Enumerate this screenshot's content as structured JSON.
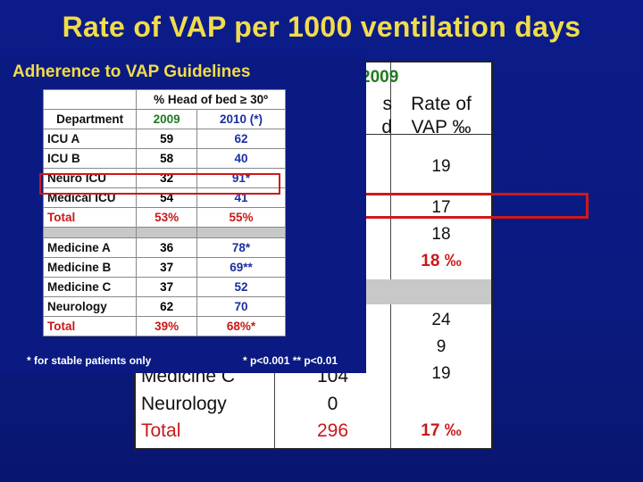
{
  "title": "Rate of VAP per 1000 ventilation days",
  "background_table": {
    "year": "2009",
    "col_header_1": "s\nd",
    "col_header_2": "Rate of\nVAP ‰",
    "rates": [
      "19",
      "17",
      "18",
      "18 ‰",
      "24",
      "9",
      "19",
      "17 ‰"
    ],
    "rows": [
      {
        "dept": "Medicine C",
        "value": "104"
      },
      {
        "dept": "Neurology",
        "value": "0"
      },
      {
        "dept": "Total",
        "value": "296"
      }
    ]
  },
  "overlay": {
    "title": "Adherence to VAP Guidelines",
    "header": {
      "measure": "% Head of bed ≥ 30º",
      "dept": "Department",
      "y2009": "2009",
      "y2010": "2010 (*)"
    },
    "rows1": [
      {
        "dept": "ICU A",
        "v2009": "59",
        "v2010": "62"
      },
      {
        "dept": "ICU B",
        "v2009": "58",
        "v2010": "40"
      },
      {
        "dept": "Neuro ICU",
        "v2009": "32",
        "v2010": "91*"
      },
      {
        "dept": "Medical ICU",
        "v2009": "54",
        "v2010": "41"
      },
      {
        "dept": "Total",
        "v2009": "53%",
        "v2010": "55%"
      }
    ],
    "rows2": [
      {
        "dept": "Medicine A",
        "v2009": "36",
        "v2010": "78*"
      },
      {
        "dept": "Medicine B",
        "v2009": "37",
        "v2010": "69**"
      },
      {
        "dept": "Medicine C",
        "v2009": "37",
        "v2010": "52"
      },
      {
        "dept": "Neurology",
        "v2009": "62",
        "v2010": "70"
      },
      {
        "dept": "Total",
        "v2009": "39%",
        "v2010": "68%*"
      }
    ],
    "footnote_left": "* for stable patients only",
    "footnote_right": "* p<0.001  ** p<0.01"
  }
}
